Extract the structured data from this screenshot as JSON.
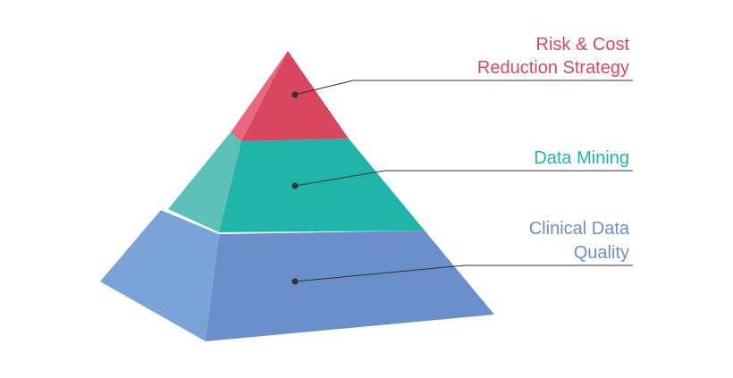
{
  "tiers": [
    {
      "lines": [
        "Risk & Cost",
        "Reduction Strategy"
      ]
    },
    {
      "lines": [
        "Data Mining"
      ]
    },
    {
      "lines": [
        "Clinical Data",
        "Quality"
      ]
    }
  ]
}
